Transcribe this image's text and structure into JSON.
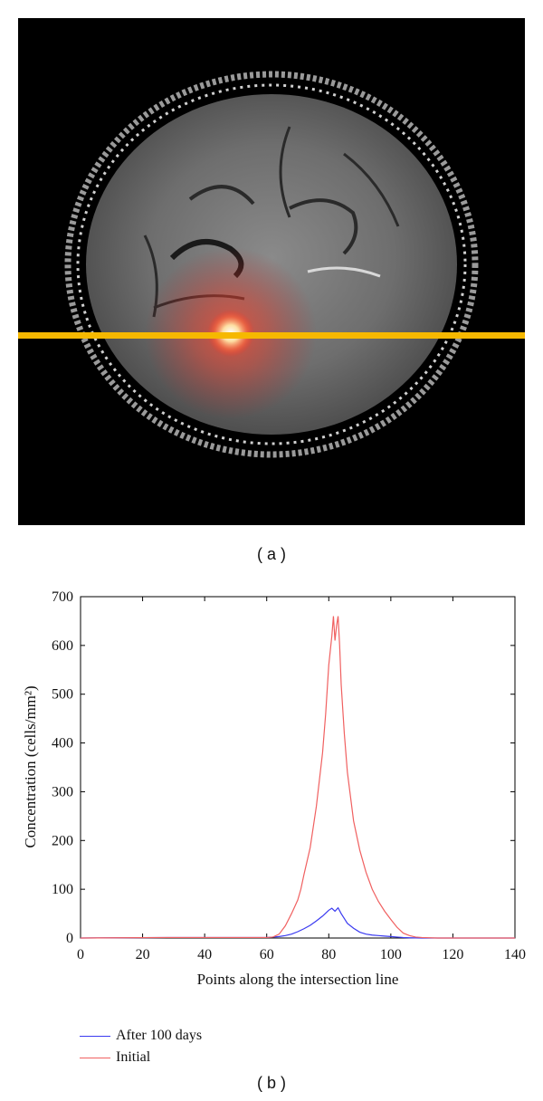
{
  "figure": {
    "panel_a_caption": "( a )",
    "panel_b_caption": "( b )"
  },
  "mri": {
    "image": "axial brain MRI slice with red tumour hotspot",
    "line_color": "#f6b800",
    "hotspot_color": "#ff3b2a"
  },
  "chart_data": {
    "type": "line",
    "xlabel": "Points along the intersection line",
    "ylabel": "Concentration (cells/mm²)",
    "xlim": [
      0,
      140
    ],
    "ylim": [
      0,
      700
    ],
    "xticks": [
      "0",
      "20",
      "40",
      "60",
      "80",
      "100",
      "120",
      "140"
    ],
    "yticks": [
      "0",
      "100",
      "200",
      "300",
      "400",
      "500",
      "600",
      "700"
    ],
    "legend_position": "below",
    "series": [
      {
        "name": "After 100 days",
        "color": "#3a3af0",
        "x": [
          0,
          28,
          60,
          62,
          64,
          66,
          68,
          70,
          72,
          74,
          76,
          78,
          79,
          80,
          81,
          82,
          83,
          84,
          85,
          86,
          88,
          90,
          92,
          94,
          96,
          98,
          100,
          102,
          104,
          106,
          110,
          120,
          140
        ],
        "y": [
          0,
          1,
          1,
          2,
          3,
          5,
          8,
          13,
          19,
          26,
          35,
          45,
          51,
          57,
          61,
          55,
          62,
          50,
          40,
          30,
          20,
          12,
          8,
          6,
          5,
          4,
          3,
          2,
          1,
          0.5,
          0,
          0,
          0
        ]
      },
      {
        "name": "Initial",
        "color": "#f06060",
        "x": [
          0,
          28,
          60,
          62,
          64,
          66,
          68,
          70,
          71,
          72,
          74,
          76,
          78,
          79,
          80,
          81,
          81.5,
          82,
          82.5,
          83,
          83.5,
          84,
          85,
          86,
          88,
          90,
          92,
          94,
          96,
          98,
          100,
          102,
          104,
          106,
          108,
          110,
          115,
          120,
          140
        ],
        "y": [
          0,
          1,
          1,
          2,
          8,
          25,
          50,
          78,
          100,
          130,
          185,
          270,
          380,
          460,
          560,
          620,
          660,
          610,
          640,
          660,
          600,
          520,
          420,
          340,
          240,
          180,
          135,
          100,
          75,
          55,
          38,
          22,
          10,
          5,
          2,
          1,
          0,
          0,
          0
        ]
      }
    ]
  }
}
